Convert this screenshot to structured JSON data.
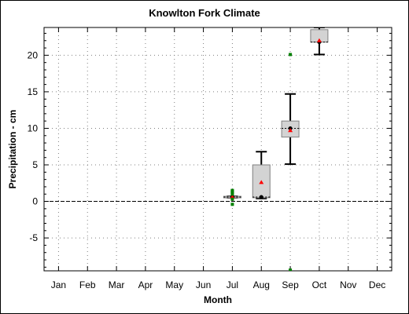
{
  "chart_data": {
    "type": "box",
    "title": "Knowlton Fork Climate",
    "xlabel": "Month",
    "ylabel": "Precipitation - cm",
    "categories": [
      "Jan",
      "Feb",
      "Mar",
      "Apr",
      "May",
      "Jun",
      "Jul",
      "Aug",
      "Sep",
      "Oct",
      "Nov",
      "Dec"
    ],
    "ylim": [
      -9.5,
      23.8
    ],
    "yticks": [
      -5,
      0,
      5,
      10,
      15,
      20
    ],
    "grid": true,
    "zero_line": true,
    "boxes": [
      {
        "category": "Jul",
        "whisker_low": 0.5,
        "q1": 0.5,
        "median": 0.6,
        "q3": 0.7,
        "whisker_high": 0.7,
        "mean": 0.6,
        "outliers": [
          1.0,
          1.2,
          1.4,
          1.5,
          0.3,
          -0.4
        ]
      },
      {
        "category": "Aug",
        "whisker_low": 0.4,
        "q1": 0.5,
        "median": 0.6,
        "q3": 5.0,
        "whisker_high": 6.8,
        "mean": 2.6,
        "outliers": []
      },
      {
        "category": "Sep",
        "whisker_low": 5.1,
        "q1": 8.8,
        "median": 10.0,
        "q3": 11.0,
        "whisker_high": 14.7,
        "mean": 9.7,
        "outliers": [
          20.1,
          -9.4
        ]
      },
      {
        "category": "Oct",
        "whisker_low": 20.1,
        "q1": 21.8,
        "median": 21.8,
        "q3": 23.5,
        "whisker_high": 23.8,
        "mean": 22.0,
        "outliers": []
      }
    ],
    "colors": {
      "box_fill": "#d3d3d3",
      "box_stroke": "#808080",
      "whisker": "#000000",
      "median": "#000000",
      "mean": "#ff0000",
      "outlier": "#008000",
      "grid": "#808080"
    }
  }
}
